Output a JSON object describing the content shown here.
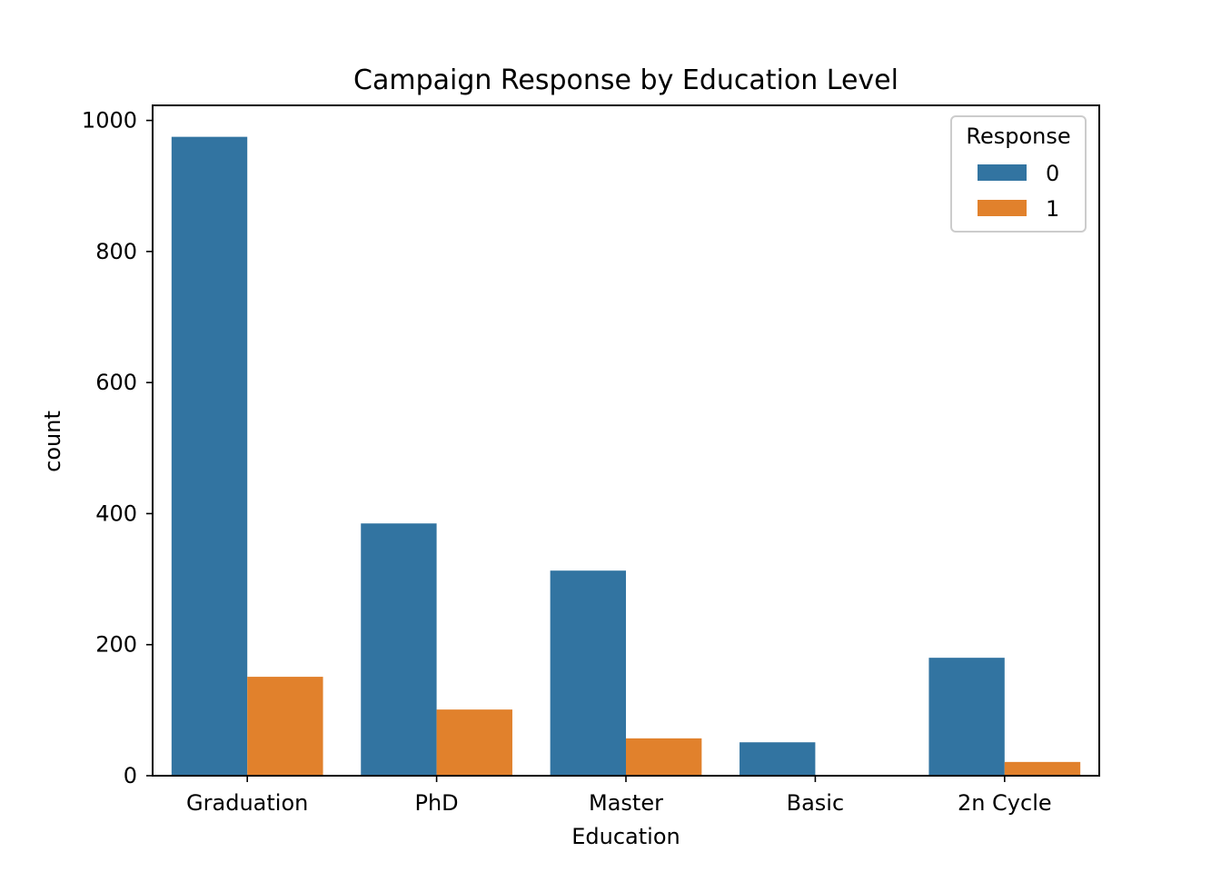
{
  "chart_data": {
    "type": "bar",
    "title": "Campaign Response by Education Level",
    "xlabel": "Education",
    "ylabel": "count",
    "categories": [
      "Graduation",
      "PhD",
      "Master",
      "Basic",
      "2n Cycle"
    ],
    "series": [
      {
        "name": "0",
        "color": "#3274a1",
        "values": [
          975,
          385,
          313,
          51,
          180
        ]
      },
      {
        "name": "1",
        "color": "#e1812c",
        "values": [
          151,
          101,
          57,
          0,
          21
        ]
      }
    ],
    "ylim": [
      0,
      1023
    ],
    "yticks": [
      0,
      200,
      400,
      600,
      800,
      1000
    ],
    "grid": false,
    "legend": {
      "title": "Response",
      "position": "top-right"
    }
  }
}
